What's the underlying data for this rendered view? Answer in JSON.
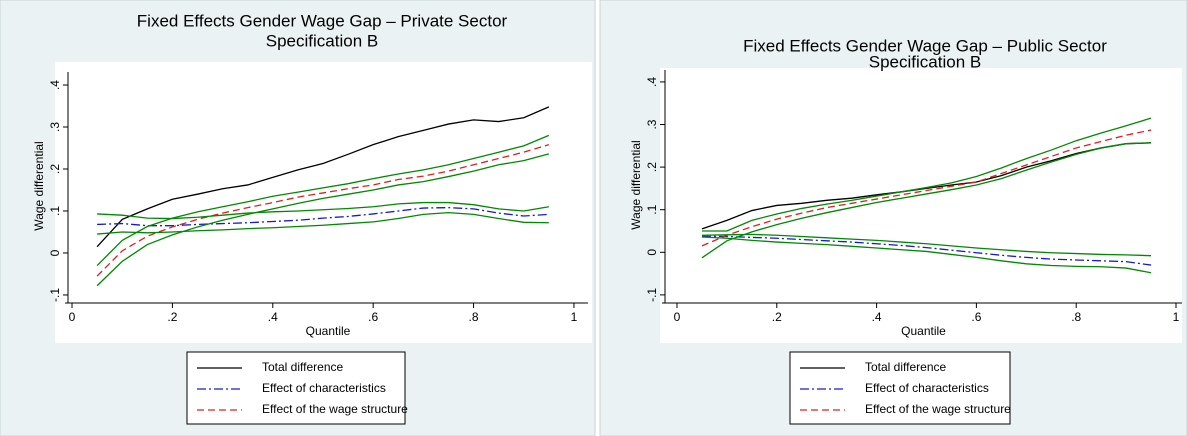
{
  "chart_data": [
    {
      "type": "line",
      "title": "Fixed Effects Gender Wage Gap – Private Sector",
      "subtitle": "Specification B",
      "x_label": "Quantile",
      "y_label": "Wage differential",
      "x": [
        0.05,
        0.1,
        0.15,
        0.2,
        0.25,
        0.3,
        0.35,
        0.4,
        0.45,
        0.5,
        0.55,
        0.6,
        0.65,
        0.7,
        0.75,
        0.8,
        0.85,
        0.9,
        0.95
      ],
      "xlim": [
        -0.008,
        1.028
      ],
      "xticks": [
        0,
        {
          "value": 0.2,
          "label": ".2"
        },
        {
          "value": 0.4,
          "label": ".4"
        },
        {
          "value": 0.6,
          "label": ".6"
        },
        {
          "value": 0.8,
          "label": ".8"
        },
        1
      ],
      "ylim": [
        -0.112,
        0.431
      ],
      "yticks": [
        {
          "value": -0.1,
          "label": "-.1"
        },
        0,
        {
          "value": 0.1,
          "label": ".1"
        },
        {
          "value": 0.2,
          "label": ".2"
        },
        {
          "value": 0.3,
          "label": ".3"
        },
        {
          "value": 0.4,
          "label": ".4"
        }
      ],
      "grid": false,
      "legend": "bottom",
      "series": [
        {
          "name": "Total difference",
          "color": "#000000",
          "style": "solid",
          "values": [
            0.015,
            0.08,
            0.105,
            0.128,
            0.14,
            0.153,
            0.162,
            0.18,
            0.198,
            0.213,
            0.235,
            0.258,
            0.277,
            0.292,
            0.307,
            0.317,
            0.313,
            0.322,
            0.348
          ]
        },
        {
          "name": "Effect of characteristics",
          "color": "#1a1acc",
          "style": "dashdot",
          "values": [
            0.068,
            0.07,
            0.065,
            0.065,
            0.068,
            0.07,
            0.072,
            0.075,
            0.078,
            0.083,
            0.087,
            0.093,
            0.1,
            0.107,
            0.108,
            0.105,
            0.095,
            0.088,
            0.092
          ]
        },
        {
          "name": "Effect of the wage structure",
          "color": "#e02020",
          "style": "dash",
          "values": [
            -0.055,
            0.005,
            0.04,
            0.062,
            0.08,
            0.095,
            0.108,
            0.12,
            0.133,
            0.143,
            0.153,
            0.162,
            0.175,
            0.183,
            0.195,
            0.21,
            0.225,
            0.24,
            0.258
          ]
        },
        {
          "color": "#008a00",
          "style": "solid",
          "values": [
            0.093,
            0.09,
            0.083,
            0.082,
            0.085,
            0.09,
            0.095,
            0.098,
            0.1,
            0.103,
            0.106,
            0.11,
            0.117,
            0.12,
            0.12,
            0.115,
            0.105,
            0.1,
            0.11
          ]
        },
        {
          "color": "#008a00",
          "style": "solid",
          "values": [
            0.045,
            0.05,
            0.048,
            0.05,
            0.053,
            0.055,
            0.058,
            0.06,
            0.063,
            0.066,
            0.07,
            0.074,
            0.082,
            0.092,
            0.096,
            0.092,
            0.082,
            0.073,
            0.072
          ]
        },
        {
          "color": "#008a00",
          "style": "solid",
          "values": [
            -0.03,
            0.03,
            0.063,
            0.083,
            0.098,
            0.11,
            0.122,
            0.135,
            0.145,
            0.155,
            0.165,
            0.177,
            0.188,
            0.198,
            0.21,
            0.225,
            0.24,
            0.255,
            0.28
          ]
        },
        {
          "color": "#008a00",
          "style": "solid",
          "values": [
            -0.078,
            -0.02,
            0.02,
            0.043,
            0.062,
            0.078,
            0.092,
            0.105,
            0.118,
            0.13,
            0.14,
            0.15,
            0.162,
            0.17,
            0.182,
            0.195,
            0.21,
            0.22,
            0.236
          ]
        }
      ]
    },
    {
      "type": "line",
      "title": "Fixed Effects Gender Wage Gap – Public Sector",
      "subtitle": "Specification B",
      "x_label": "Quantile",
      "y_label": "Wage differential",
      "x": [
        0.05,
        0.1,
        0.15,
        0.2,
        0.25,
        0.3,
        0.35,
        0.4,
        0.45,
        0.5,
        0.55,
        0.6,
        0.65,
        0.7,
        0.75,
        0.8,
        0.85,
        0.9,
        0.95
      ],
      "xlim": [
        -0.024,
        1.012
      ],
      "xticks": [
        0,
        {
          "value": 0.2,
          "label": ".2"
        },
        {
          "value": 0.4,
          "label": ".4"
        },
        {
          "value": 0.6,
          "label": ".6"
        },
        {
          "value": 0.8,
          "label": ".8"
        },
        1
      ],
      "ylim": [
        -0.112,
        0.428
      ],
      "yticks": [
        {
          "value": -0.1,
          "label": "-.1"
        },
        0,
        {
          "value": 0.1,
          "label": ".1"
        },
        {
          "value": 0.2,
          "label": ".2"
        },
        {
          "value": 0.3,
          "label": ".3"
        },
        {
          "value": 0.4,
          "label": ".4"
        }
      ],
      "grid": false,
      "legend": "bottom",
      "series": [
        {
          "name": "Total difference",
          "color": "#000000",
          "style": "solid",
          "values": [
            0.055,
            0.075,
            0.098,
            0.11,
            0.115,
            0.122,
            0.127,
            0.135,
            0.142,
            0.15,
            0.158,
            0.165,
            0.18,
            0.2,
            0.215,
            0.232,
            0.245,
            0.255,
            0.257
          ]
        },
        {
          "name": "Effect of characteristics",
          "color": "#1a1acc",
          "style": "dashdot",
          "values": [
            0.038,
            0.037,
            0.035,
            0.033,
            0.03,
            0.027,
            0.024,
            0.02,
            0.016,
            0.011,
            0.005,
            -0.001,
            -0.007,
            -0.012,
            -0.016,
            -0.018,
            -0.02,
            -0.022,
            -0.03
          ]
        },
        {
          "name": "Effect of the wage structure",
          "color": "#e02020",
          "style": "dash",
          "values": [
            0.015,
            0.04,
            0.06,
            0.078,
            0.092,
            0.105,
            0.115,
            0.125,
            0.135,
            0.145,
            0.155,
            0.165,
            0.185,
            0.205,
            0.225,
            0.245,
            0.26,
            0.275,
            0.287
          ]
        },
        {
          "color": "#008a00",
          "style": "solid",
          "values": [
            0.04,
            0.041,
            0.042,
            0.04,
            0.037,
            0.034,
            0.031,
            0.028,
            0.024,
            0.02,
            0.015,
            0.01,
            0.006,
            0.002,
            -0.001,
            -0.003,
            -0.005,
            -0.006,
            -0.008
          ]
        },
        {
          "color": "#008a00",
          "style": "solid",
          "values": [
            0.036,
            0.033,
            0.028,
            0.024,
            0.021,
            0.018,
            0.014,
            0.01,
            0.006,
            0.002,
            -0.005,
            -0.012,
            -0.02,
            -0.027,
            -0.031,
            -0.033,
            -0.034,
            -0.037,
            -0.048
          ]
        },
        {
          "color": "#008a00",
          "style": "solid",
          "values": [
            0.05,
            0.05,
            0.075,
            0.09,
            0.103,
            0.113,
            0.122,
            0.132,
            0.142,
            0.152,
            0.163,
            0.178,
            0.198,
            0.22,
            0.24,
            0.262,
            0.28,
            0.297,
            0.315
          ]
        },
        {
          "color": "#008a00",
          "style": "solid",
          "values": [
            -0.013,
            0.027,
            0.048,
            0.065,
            0.08,
            0.093,
            0.105,
            0.117,
            0.127,
            0.137,
            0.147,
            0.158,
            0.173,
            0.193,
            0.212,
            0.23,
            0.245,
            0.255,
            0.257
          ]
        }
      ]
    }
  ]
}
